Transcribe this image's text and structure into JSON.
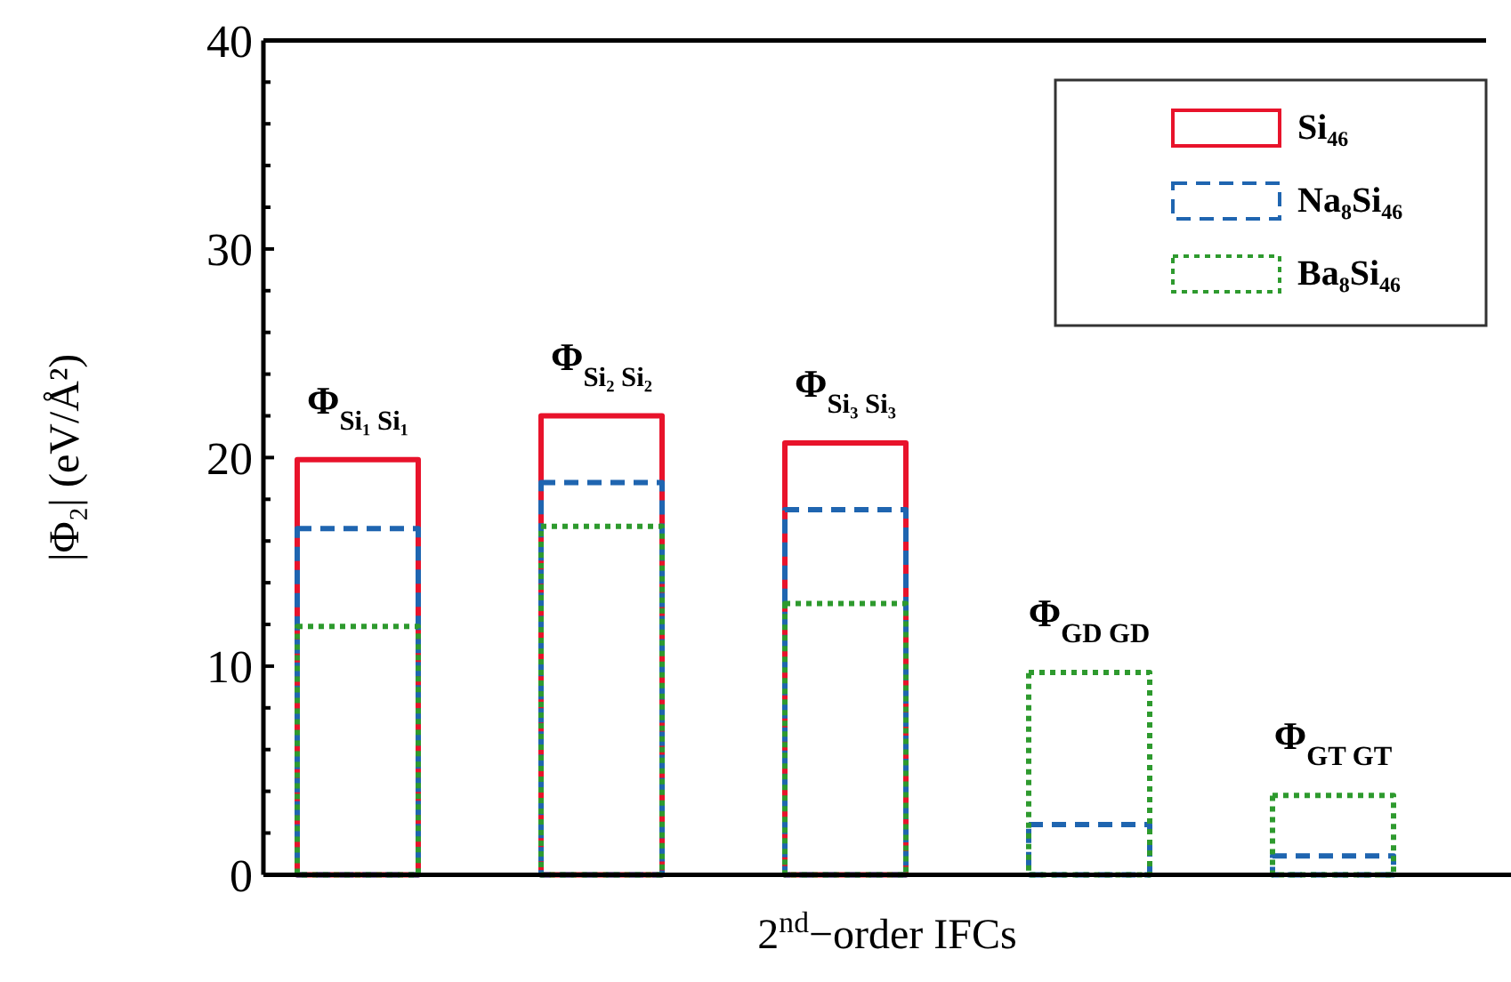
{
  "chart_data": {
    "type": "bar",
    "xlabel": "2$^{nd}$−order IFCs",
    "ylabel": "|Φ₂| (eV/Å²)",
    "categories": [
      "Φ$_{Si₁ Si₁}$",
      "Φ$_{Si₂ Si₂}$",
      "Φ$_{Si₃ Si₃}$",
      "Φ$_{GD GD}$",
      "Φ$_{GT GT}$"
    ],
    "series": [
      {
        "name": "Si₄₆",
        "color": "#e8132b",
        "line_style": "solid",
        "values": [
          19.9,
          22.0,
          20.7,
          null,
          null
        ]
      },
      {
        "name": "Na₈Si₄₆",
        "color": "#1f65b0",
        "line_style": "dashed",
        "values": [
          16.6,
          18.8,
          17.5,
          2.4,
          0.9
        ]
      },
      {
        "name": "Ba₈Si₄₆",
        "color": "#2e9a2e",
        "line_style": "dotted",
        "values": [
          11.9,
          16.7,
          13.0,
          9.7,
          3.8
        ]
      }
    ],
    "ylim": [
      0,
      40
    ],
    "yticks": [
      0,
      {
        "value": 2,
        "label": null
      },
      {
        "value": 4,
        "label": null
      },
      {
        "value": 6,
        "label": null
      },
      {
        "value": 8,
        "label": null
      },
      10,
      {
        "value": 12,
        "label": null
      },
      {
        "value": 14,
        "label": null
      },
      {
        "value": 16,
        "label": null
      },
      {
        "value": 18,
        "label": null
      },
      20,
      {
        "value": 22,
        "label": null
      },
      {
        "value": 24,
        "label": null
      },
      {
        "value": 26,
        "label": null
      },
      {
        "value": 28,
        "label": null
      },
      30,
      {
        "value": 32,
        "label": null
      },
      {
        "value": 34,
        "label": null
      },
      {
        "value": 36,
        "label": null
      },
      {
        "value": 38,
        "label": null
      },
      40
    ],
    "grid": false,
    "legend": "top right",
    "tick_labels": "y"
  }
}
